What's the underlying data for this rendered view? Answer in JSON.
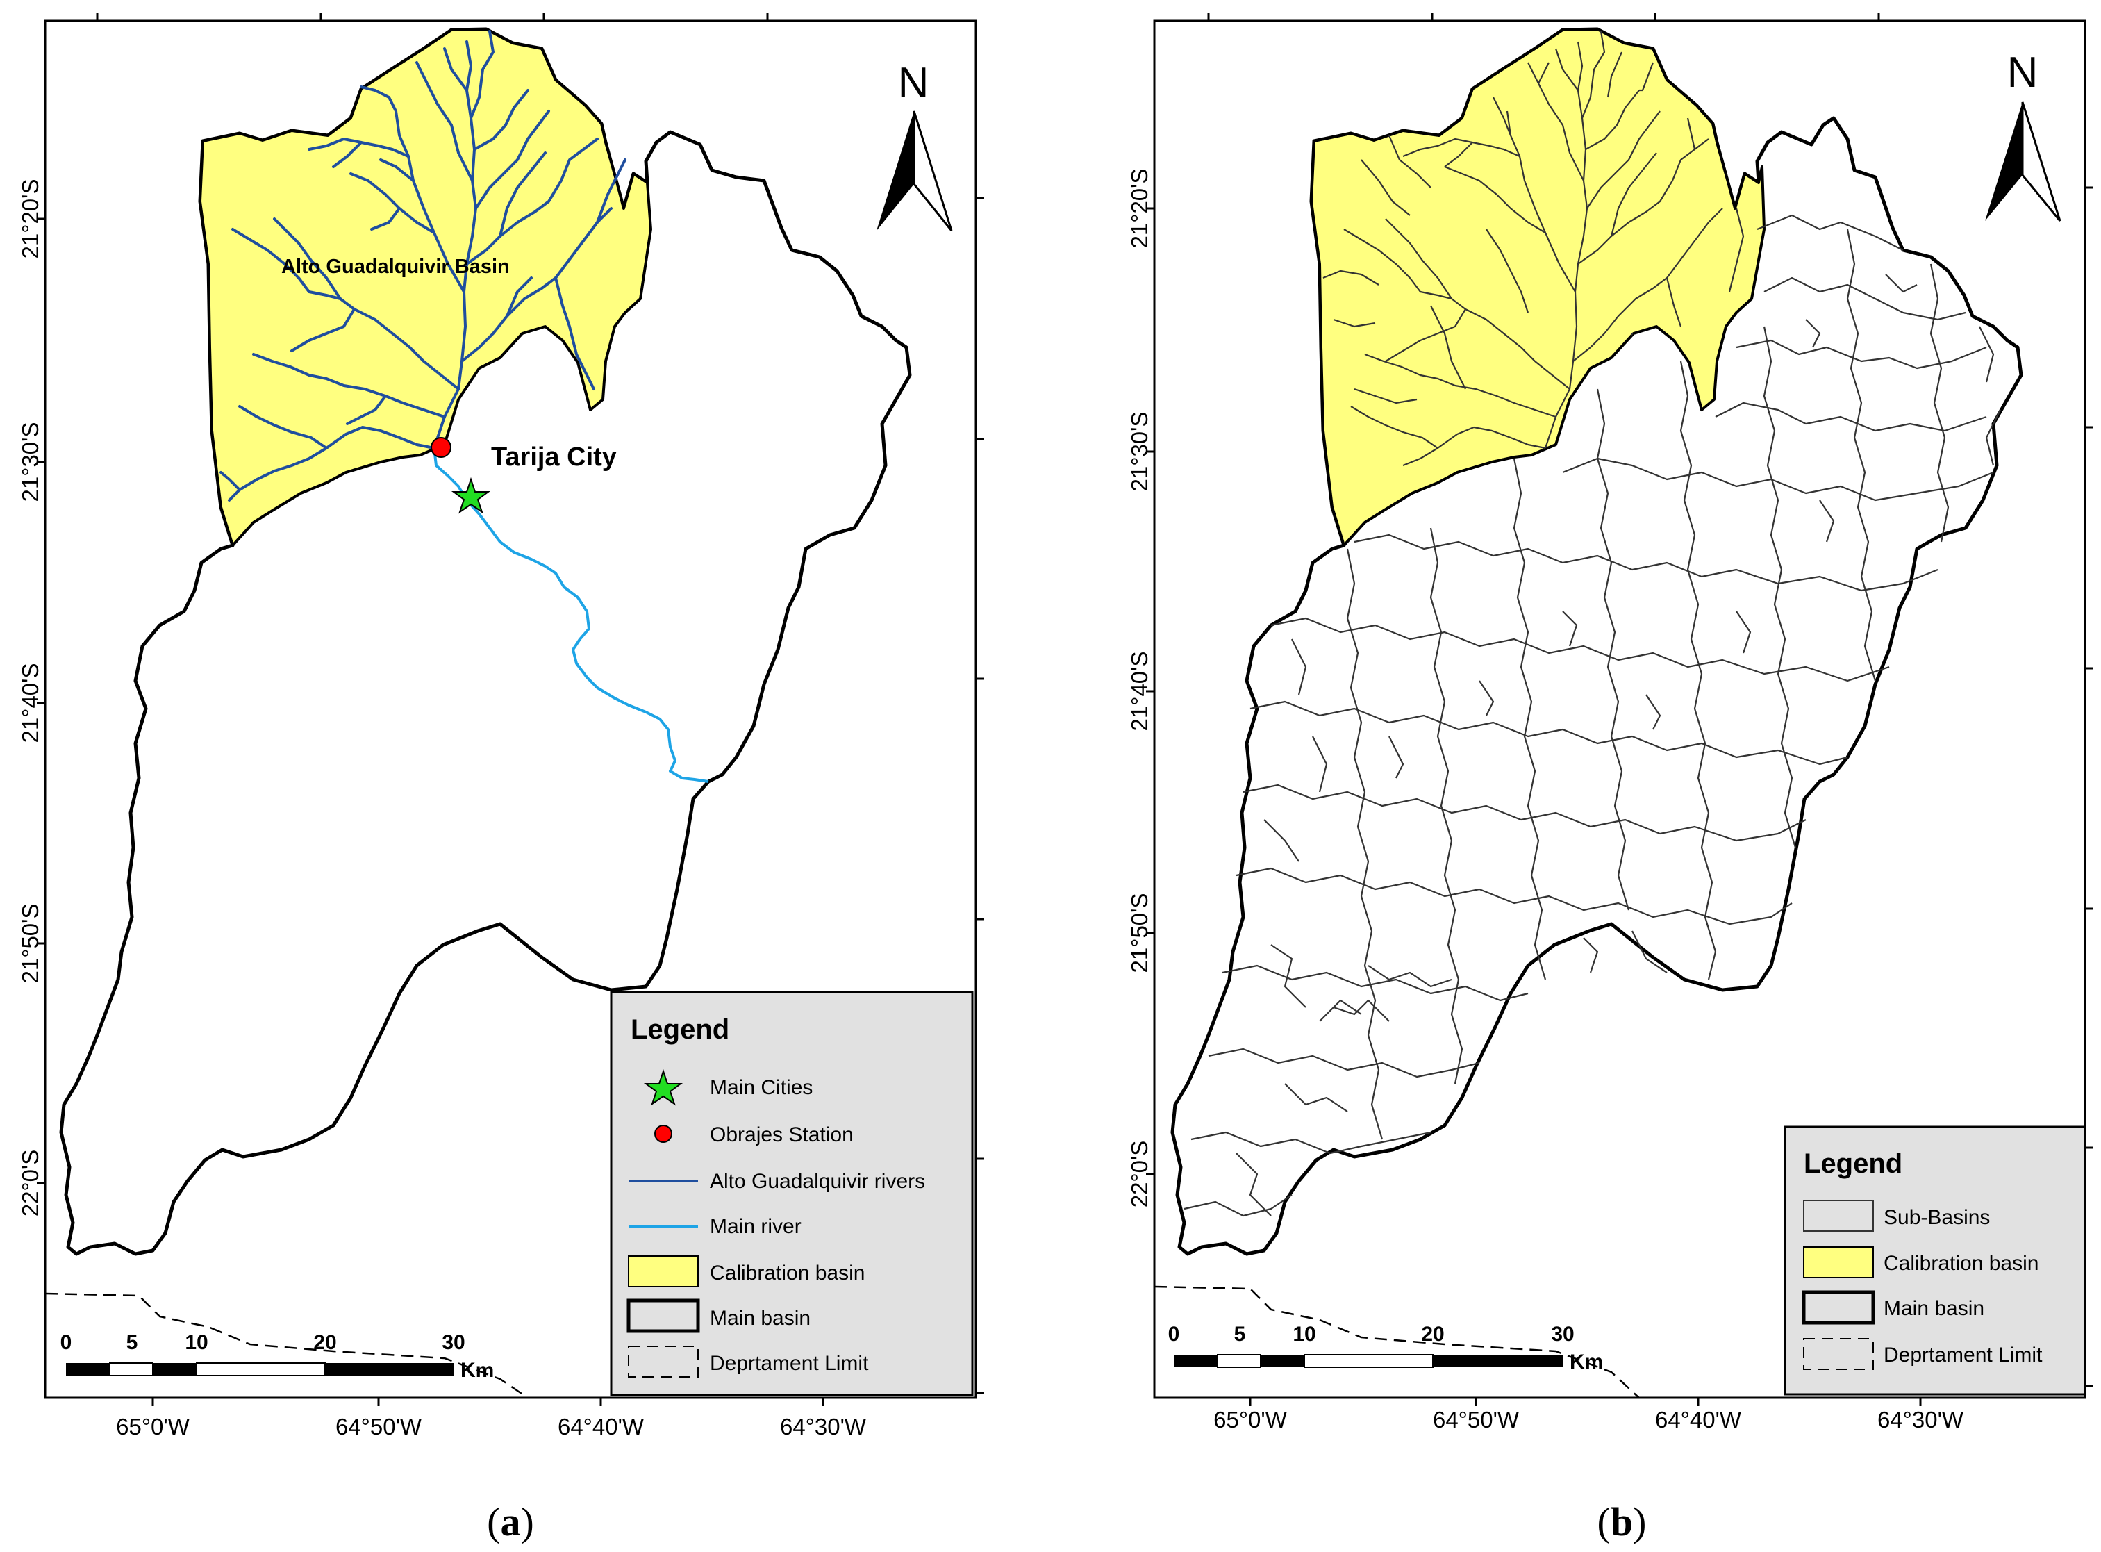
{
  "panels": [
    {
      "id": "a",
      "caption": "a",
      "lat_labels": [
        "21°20'S",
        "21°30'S",
        "21°40'S",
        "21°50'S",
        "22°0'S"
      ],
      "lon_labels": [
        "65°0'W",
        "64°50'W",
        "64°40'W",
        "64°30'W"
      ],
      "north_label": "N",
      "basin_label": "Alto Guadalquivir Basin",
      "city_label": "Tarija City",
      "legend": {
        "title": "Legend",
        "items": [
          {
            "label": "Main Cities",
            "symbol": "green-star"
          },
          {
            "label": "Obrajes Station",
            "symbol": "red-dot"
          },
          {
            "label": "Alto Guadalquivir rivers",
            "symbol": "dark-blue-line"
          },
          {
            "label": "Main river",
            "symbol": "light-blue-line"
          },
          {
            "label": "Calibration basin",
            "symbol": "yellow-box"
          },
          {
            "label": "Main basin",
            "symbol": "thick-outline-box"
          },
          {
            "label": "Deprtament Limit",
            "symbol": "dashed-box"
          }
        ]
      },
      "scale_bar": {
        "ticks": [
          "0",
          "5",
          "10",
          "20",
          "30"
        ],
        "unit": "Km"
      }
    },
    {
      "id": "b",
      "caption": "b",
      "lat_labels": [
        "21°20'S",
        "21°30'S",
        "21°40'S",
        "21°50'S",
        "22°0'S"
      ],
      "lon_labels": [
        "65°0'W",
        "64°50'W",
        "64°40'W",
        "64°30'W"
      ],
      "north_label": "N",
      "legend": {
        "title": "Legend",
        "items": [
          {
            "label": "Sub-Basins",
            "symbol": "grey-box"
          },
          {
            "label": "Calibration basin",
            "symbol": "yellow-box"
          },
          {
            "label": "Main basin",
            "symbol": "thick-outline-box"
          },
          {
            "label": "Deprtament Limit",
            "symbol": "dashed-box"
          }
        ]
      },
      "scale_bar": {
        "ticks": [
          "0",
          "5",
          "10",
          "20",
          "30"
        ],
        "unit": "Km"
      }
    }
  ],
  "colors": {
    "calibration_fill": "#FFFF80",
    "river_dark": "#1F4E9E",
    "river_light": "#1EA4E6",
    "station": "#FF0000",
    "city_star": "#22DD22",
    "legend_bg": "#E1E1E1",
    "outline": "#000000"
  }
}
